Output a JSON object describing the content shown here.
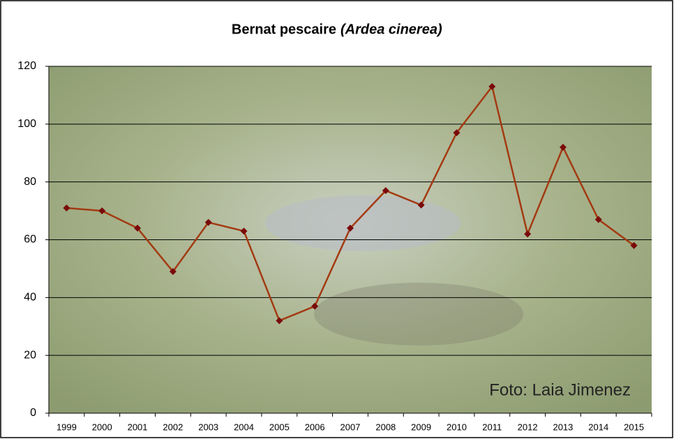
{
  "chart_data": {
    "type": "line",
    "title": "Bernat pescaire",
    "title_species": "(Ardea cinerea)",
    "categories": [
      "1999",
      "2000",
      "2001",
      "2002",
      "2003",
      "2004",
      "2005",
      "2006",
      "2007",
      "2008",
      "2009",
      "2010",
      "2011",
      "2012",
      "2013",
      "2014",
      "2015"
    ],
    "values": [
      71,
      70,
      64,
      49,
      66,
      63,
      32,
      37,
      64,
      77,
      72,
      97,
      113,
      62,
      92,
      67,
      58
    ],
    "color": "#a33a12",
    "marker_color": "#7a0a0a",
    "ylim": [
      0,
      120
    ],
    "yticks": [
      0,
      20,
      40,
      60,
      80,
      100,
      120
    ],
    "grid": true,
    "photo_credit": "Foto: Laia Jimenez"
  }
}
